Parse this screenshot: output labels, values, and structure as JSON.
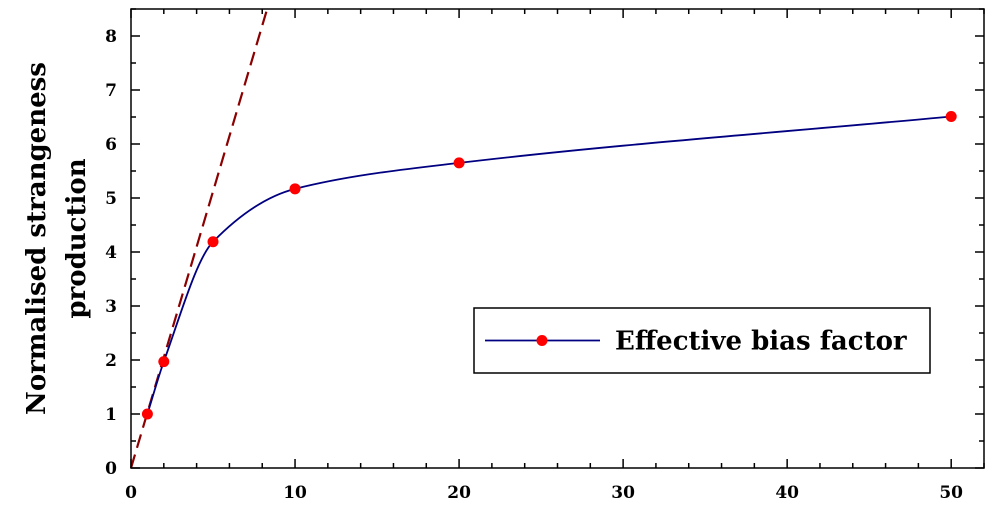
{
  "chart_data": {
    "type": "line",
    "title": "",
    "xlabel": "",
    "ylabel_lines": [
      "Normalised strangeness",
      "production"
    ],
    "xlim": [
      0,
      52
    ],
    "ylim": [
      0,
      8.5
    ],
    "x_ticks": [
      0,
      10,
      20,
      30,
      40,
      50
    ],
    "y_ticks": [
      0,
      1,
      2,
      3,
      4,
      5,
      6,
      7,
      8
    ],
    "x_minor_step": 2,
    "y_minor_step": 0.5,
    "grid": false,
    "legend_position": "center-right",
    "series": [
      {
        "name": "Effective bias factor",
        "style": "solid-line-with-markers",
        "line_color": "#000080",
        "marker_color": "#ff0000",
        "x": [
          1,
          2,
          5,
          10,
          20,
          50
        ],
        "y": [
          1.0,
          1.97,
          4.19,
          5.17,
          5.65,
          6.51
        ]
      },
      {
        "style": "dashed",
        "line_color": "#8b0000",
        "x": [
          0,
          8.3
        ],
        "y": [
          0,
          8.5
        ]
      }
    ]
  }
}
